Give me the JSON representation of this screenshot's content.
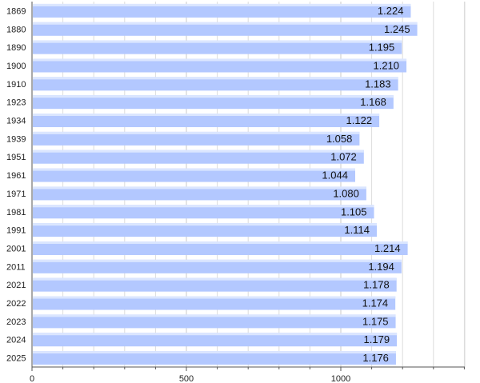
{
  "chart_data": {
    "type": "bar",
    "orientation": "horizontal",
    "title": "",
    "xlabel": "",
    "ylabel": "",
    "categories": [
      "1869",
      "1880",
      "1890",
      "1900",
      "1910",
      "1923",
      "1934",
      "1939",
      "1951",
      "1961",
      "1971",
      "1981",
      "1991",
      "2001",
      "2011",
      "2021",
      "2022",
      "2023",
      "2024",
      "2025"
    ],
    "values": [
      1224,
      1245,
      1195,
      1210,
      1183,
      1168,
      1122,
      1058,
      1072,
      1044,
      1080,
      1105,
      1114,
      1214,
      1194,
      1178,
      1174,
      1175,
      1179,
      1176
    ],
    "value_labels": [
      "1.224",
      "1.245",
      "1.195",
      "1.210",
      "1.183",
      "1.168",
      "1.122",
      "1.058",
      "1.072",
      "1.044",
      "1.080",
      "1.105",
      "1.114",
      "1.214",
      "1.194",
      "1.178",
      "1.174",
      "1.175",
      "1.179",
      "1.176"
    ],
    "x_ticks": [
      0,
      500,
      1000
    ],
    "x_tick_labels": [
      "0",
      "500",
      "1000"
    ],
    "xlim": [
      0,
      1400
    ],
    "grid": true,
    "legend": "none",
    "colors": {
      "bar": "#b3c8ff",
      "bar_highlight": "#dbe6ff",
      "grid": "#dcdcdc",
      "axis": "#555555"
    }
  }
}
